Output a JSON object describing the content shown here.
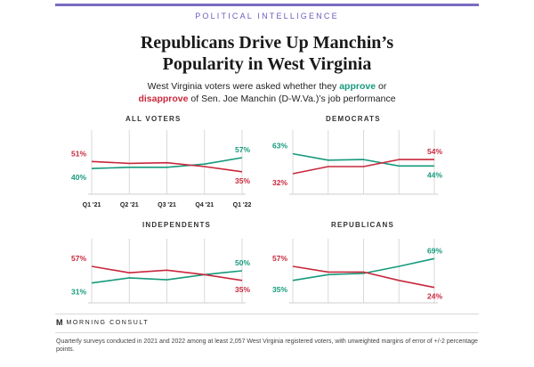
{
  "header": {
    "kicker": "POLITICAL INTELLIGENCE",
    "title_line1": "Republicans Drive Up Manchin’s",
    "title_line2": "Popularity in West Virginia",
    "subtitle_line1_pre": "West Virginia voters were asked whether they ",
    "subtitle_approve": "approve",
    "subtitle_line1_post": " or",
    "subtitle_disapprove": "disapprove",
    "subtitle_line2_post": " of Sen. Joe Manchin (D-W.Va.)’s job performance"
  },
  "colors": {
    "approve": "#169a7c",
    "disapprove": "#c8283c",
    "grid": "#d9d9d9"
  },
  "chart_data": [
    {
      "type": "line",
      "title": "ALL VOTERS",
      "categories": [
        "Q1 '21",
        "Q2 '21",
        "Q3 '21",
        "Q4 '21",
        "Q1 '22"
      ],
      "series": [
        {
          "name": "approve",
          "values": [
            40,
            42,
            42,
            47,
            57
          ],
          "start_label": "40%",
          "end_label": "57%"
        },
        {
          "name": "disapprove",
          "values": [
            51,
            48,
            49,
            43,
            35
          ],
          "start_label": "51%",
          "end_label": "35%"
        }
      ],
      "ylim": [
        0,
        100
      ]
    },
    {
      "type": "line",
      "title": "DEMOCRATS",
      "categories": [
        "Q1 '21",
        "Q2 '21",
        "Q3 '21",
        "Q4 '21",
        "Q1 '22"
      ],
      "series": [
        {
          "name": "approve",
          "values": [
            63,
            53,
            54,
            44,
            44
          ],
          "start_label": "63%",
          "end_label": "44%"
        },
        {
          "name": "disapprove",
          "values": [
            32,
            43,
            43,
            54,
            54
          ],
          "start_label": "32%",
          "end_label": "54%"
        }
      ],
      "ylim": [
        0,
        100
      ]
    },
    {
      "type": "line",
      "title": "INDEPENDENTS",
      "categories": [
        "Q1 '21",
        "Q2 '21",
        "Q3 '21",
        "Q4 '21",
        "Q1 '22"
      ],
      "series": [
        {
          "name": "approve",
          "values": [
            31,
            39,
            36,
            44,
            50
          ],
          "start_label": "31%",
          "end_label": "50%"
        },
        {
          "name": "disapprove",
          "values": [
            57,
            47,
            51,
            44,
            35
          ],
          "start_label": "57%",
          "end_label": "35%"
        }
      ],
      "ylim": [
        0,
        100
      ]
    },
    {
      "type": "line",
      "title": "REPUBLICANS",
      "categories": [
        "Q1 '21",
        "Q2 '21",
        "Q3 '21",
        "Q4 '21",
        "Q1 '22"
      ],
      "series": [
        {
          "name": "approve",
          "values": [
            35,
            44,
            46,
            57,
            69
          ],
          "start_label": "35%",
          "end_label": "69%"
        },
        {
          "name": "disapprove",
          "values": [
            57,
            48,
            48,
            35,
            24
          ],
          "start_label": "57%",
          "end_label": "24%"
        }
      ],
      "ylim": [
        0,
        100
      ]
    }
  ],
  "footer": {
    "logo_mark": "M",
    "logo_text": "MORNING CONSULT",
    "footnote": "Quarterly surveys conducted in 2021 and 2022 among at least 2,057 West Virginia registered voters, with unweighted margins of error of +/-2 percentage points."
  }
}
